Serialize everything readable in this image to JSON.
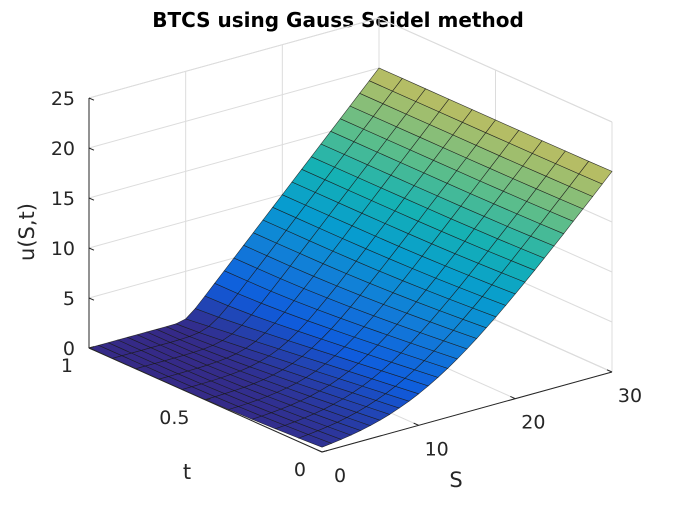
{
  "chart_data": {
    "type": "surface",
    "title": "BTCS using Gauss Seidel method",
    "xlabel": "S",
    "ylabel": "t",
    "zlabel": "u(S,t)",
    "xlim": [
      0,
      30
    ],
    "ylim": [
      0,
      1
    ],
    "zlim": [
      0,
      25
    ],
    "x_ticks": [
      "0",
      "10",
      "20",
      "30"
    ],
    "y_ticks": [
      "0",
      "0.5",
      "1"
    ],
    "z_ticks": [
      "0",
      "5",
      "10",
      "15",
      "20",
      "25"
    ],
    "grid": true,
    "colormap": "parula",
    "strike_price": 10,
    "S_grid": [
      0,
      1,
      2,
      3,
      4,
      5,
      6,
      7,
      8,
      9,
      10,
      11,
      12,
      13,
      14,
      15,
      16,
      17,
      18,
      19,
      20,
      21,
      22,
      23,
      24,
      25,
      26,
      27,
      28,
      29,
      30
    ],
    "t_grid": [
      0,
      0.1,
      0.2,
      0.3,
      0.4,
      0.5,
      0.6,
      0.7,
      0.8,
      0.9,
      1
    ],
    "surface_description_values": {
      "u_at_S0": 0,
      "u_at_S30": 20,
      "u_at_t1_equals_max_S_minus_K_0": true
    }
  }
}
